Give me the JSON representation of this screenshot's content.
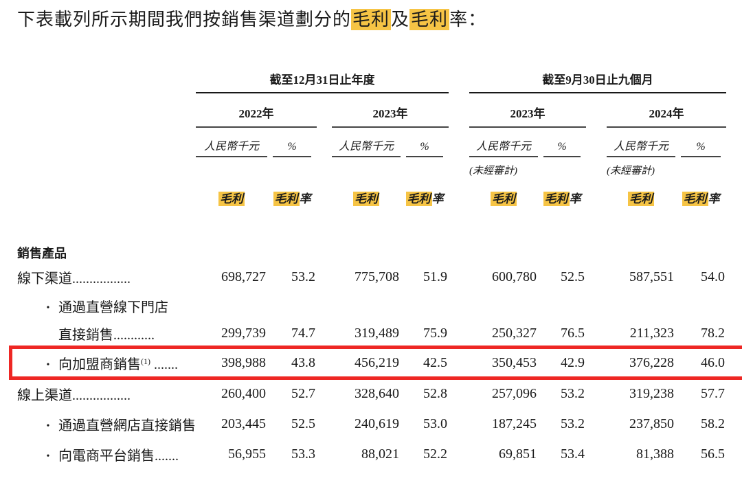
{
  "title": {
    "pre": "下表載列所示期間我們按銷售渠道劃分的",
    "hl1": "毛利",
    "mid": "及",
    "hl2": "毛利",
    "post": "率："
  },
  "table": {
    "group_headers": [
      "截至12月31日止年度",
      "截至9月30日止九個月"
    ],
    "year_headers": [
      "2022年",
      "2023年",
      "2023年",
      "2024年"
    ],
    "unit_label": "人民幣千元",
    "pct_label": "%",
    "unaudited_label": "(未經審計)",
    "gp_label": "毛利",
    "gpm_hl": "毛利",
    "gpm_rest": "率",
    "bullet": "•",
    "section_heading": "銷售產品",
    "rows": [
      {
        "label": "線下渠道.................",
        "values": [
          "698,727",
          "53.2",
          "775,708",
          "51.9",
          "600,780",
          "52.5",
          "587,551",
          "54.0"
        ]
      },
      {
        "label": "通過直營線下門店",
        "values": []
      },
      {
        "label": "直接銷售............",
        "values": [
          "299,739",
          "74.7",
          "319,489",
          "75.9",
          "250,327",
          "76.5",
          "211,323",
          "78.2"
        ]
      },
      {
        "label": "向加盟商銷售",
        "sup": "(1)",
        "dots": " .......",
        "values": [
          "398,988",
          "43.8",
          "456,219",
          "42.5",
          "350,453",
          "42.9",
          "376,228",
          "46.0"
        ]
      },
      {
        "label": "線上渠道.................",
        "values": [
          "260,400",
          "52.7",
          "328,640",
          "52.8",
          "257,096",
          "53.2",
          "319,238",
          "57.7"
        ]
      },
      {
        "label": "通過直營網店直接銷售",
        "values": [
          "203,445",
          "52.5",
          "240,619",
          "53.0",
          "187,245",
          "53.2",
          "237,850",
          "58.2"
        ]
      },
      {
        "label": "向電商平台銷售.......",
        "values": [
          "56,955",
          "53.3",
          "88,021",
          "52.2",
          "69,851",
          "53.4",
          "81,388",
          "56.5"
        ]
      }
    ]
  },
  "colors": {
    "highlight": "#f6c445",
    "annotation_box": "#ee2724",
    "text": "#1a1a1a",
    "rule": "#181818"
  }
}
